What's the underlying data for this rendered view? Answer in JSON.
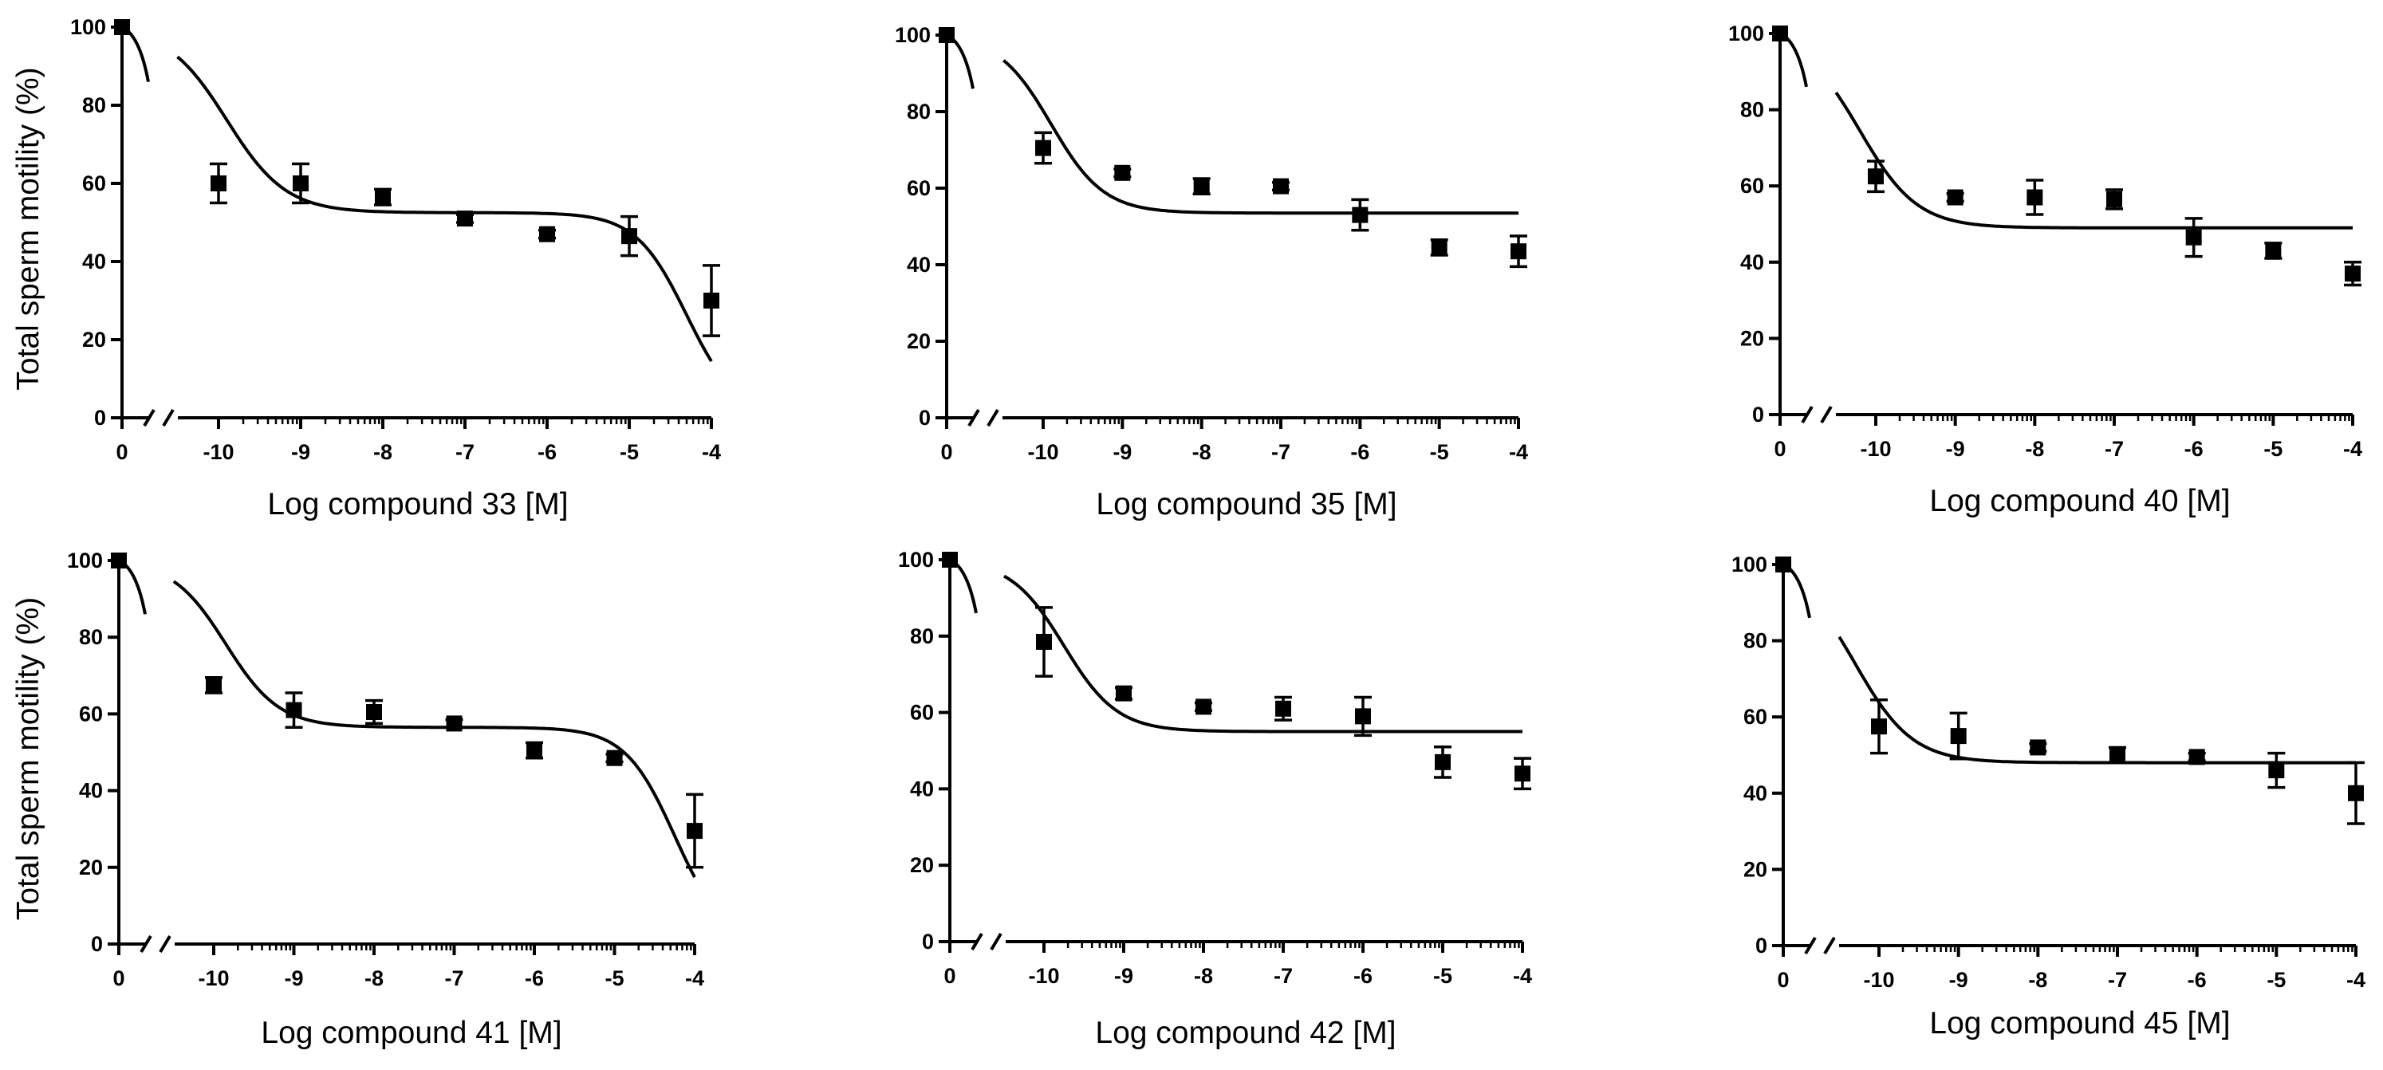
{
  "chart_data": [
    {
      "type": "scatter",
      "title": "",
      "xlabel": "Log compound 33 [M]",
      "ylabel": "Total sperm motility (%)",
      "ylim": [
        0,
        100
      ],
      "yticks": [
        0,
        20,
        40,
        60,
        80,
        100
      ],
      "xticks": [
        "0",
        "-10",
        "-9",
        "-8",
        "-7",
        "-6",
        "-5",
        "-4"
      ],
      "x_break": "between 0 and -10",
      "series": [
        {
          "name": "compound 33",
          "x": [
            "0",
            -10,
            -9,
            -8,
            -7,
            -6,
            -5,
            -4
          ],
          "values": [
            100,
            60,
            60,
            56.5,
            51,
            47,
            46.5,
            30
          ],
          "error": [
            0,
            5,
            5,
            2,
            1,
            1,
            5,
            9
          ]
        }
      ],
      "fit": {
        "top": 100,
        "bottom": 0,
        "plateau": 52.5,
        "log_ec50_high": -9.9,
        "hill_high": 1.2,
        "log_ec50_low": -4.3,
        "hill_low": 1.4
      }
    },
    {
      "type": "scatter",
      "title": "",
      "xlabel": "Log compound 35 [M]",
      "ylabel": "",
      "ylim": [
        0,
        100
      ],
      "yticks": [
        0,
        20,
        40,
        60,
        80,
        100
      ],
      "xticks": [
        "0",
        "-10",
        "-9",
        "-8",
        "-7",
        "-6",
        "-5",
        "-4"
      ],
      "x_break": "between 0 and -10",
      "series": [
        {
          "name": "compound 35",
          "x": [
            "0",
            -10,
            -9,
            -8,
            -7,
            -6,
            -5,
            -4
          ],
          "values": [
            100,
            70.5,
            64,
            60.5,
            60.5,
            53,
            44.5,
            43.5
          ],
          "error": [
            0,
            4,
            1,
            2,
            1,
            4,
            2,
            4
          ]
        }
      ],
      "fit": {
        "top": 100,
        "plateau": 53.5,
        "log_ec50_high": -9.9,
        "hill_high": 1.3
      }
    },
    {
      "type": "scatter",
      "title": "",
      "xlabel": "Log compound 40 [M]",
      "ylabel": "",
      "ylim": [
        0,
        100
      ],
      "yticks": [
        0,
        20,
        40,
        60,
        80,
        100
      ],
      "xticks": [
        "0",
        "-10",
        "-9",
        "-8",
        "-7",
        "-6",
        "-5",
        "-4"
      ],
      "x_break": "between 0 and -10",
      "series": [
        {
          "name": "compound 40",
          "x": [
            "0",
            -10,
            -9,
            -8,
            -7,
            -6,
            -5,
            -4
          ],
          "values": [
            100,
            62.5,
            57,
            57,
            56.5,
            46.5,
            43,
            37
          ],
          "error": [
            0,
            4,
            1,
            4.5,
            2.5,
            5,
            2,
            3
          ]
        }
      ],
      "fit": {
        "top": 100,
        "plateau": 49,
        "log_ec50_high": -10.2,
        "hill_high": 1.2
      }
    },
    {
      "type": "scatter",
      "title": "",
      "xlabel": "Log compound 41 [M]",
      "ylabel": "Total sperm motility (%)",
      "ylim": [
        0,
        100
      ],
      "yticks": [
        0,
        20,
        40,
        60,
        80,
        100
      ],
      "xticks": [
        "0",
        "-10",
        "-9",
        "-8",
        "-7",
        "-6",
        "-5",
        "-4"
      ],
      "x_break": "between 0 and -10",
      "series": [
        {
          "name": "compound 41",
          "x": [
            "0",
            -10,
            -9,
            -8,
            -7,
            -6,
            -5,
            -4
          ],
          "values": [
            100,
            67.5,
            61,
            60.5,
            57.5,
            50.5,
            48.5,
            29.5
          ],
          "error": [
            0,
            2,
            4.5,
            3,
            1,
            2,
            1,
            9.5
          ]
        }
      ],
      "fit": {
        "top": 100,
        "bottom": 0,
        "plateau": 56.5,
        "log_ec50_high": -9.85,
        "hill_high": 1.3,
        "log_ec50_low": -4.25,
        "hill_low": 1.4
      }
    },
    {
      "type": "scatter",
      "title": "",
      "xlabel": "Log compound 42 [M]",
      "ylabel": "",
      "ylim": [
        0,
        100
      ],
      "yticks": [
        0,
        20,
        40,
        60,
        80,
        100
      ],
      "xticks": [
        "0",
        "-10",
        "-9",
        "-8",
        "-7",
        "-6",
        "-5",
        "-4"
      ],
      "x_break": "between 0 and -10",
      "series": [
        {
          "name": "compound 42",
          "x": [
            "0",
            -10,
            -9,
            -8,
            -7,
            -6,
            -5,
            -4
          ],
          "values": [
            100,
            78.5,
            65,
            61.5,
            61,
            59,
            47,
            44
          ],
          "error": [
            0,
            9,
            1.5,
            1,
            3,
            5,
            4,
            4
          ]
        }
      ],
      "fit": {
        "top": 100,
        "plateau": 55,
        "log_ec50_high": -9.75,
        "hill_high": 1.3
      }
    },
    {
      "type": "scatter",
      "title": "",
      "xlabel": "Log compound 45 [M]",
      "ylabel": "",
      "ylim": [
        0,
        100
      ],
      "yticks": [
        0,
        20,
        40,
        60,
        80,
        100
      ],
      "xticks": [
        "0",
        "-10",
        "-9",
        "-8",
        "-7",
        "-6",
        "-5",
        "-4"
      ],
      "x_break": "between 0 and -10",
      "series": [
        {
          "name": "compound 45",
          "x": [
            "0",
            -10,
            -9,
            -8,
            -7,
            -6,
            -5,
            -4
          ],
          "values": [
            100,
            57.5,
            55,
            52,
            50,
            49.5,
            46,
            40
          ],
          "error": [
            0,
            7,
            6,
            1,
            2,
            1,
            4.5,
            8
          ]
        }
      ],
      "fit": {
        "top": 100,
        "plateau": 48,
        "log_ec50_high": -10.3,
        "hill_high": 1.2
      }
    }
  ]
}
